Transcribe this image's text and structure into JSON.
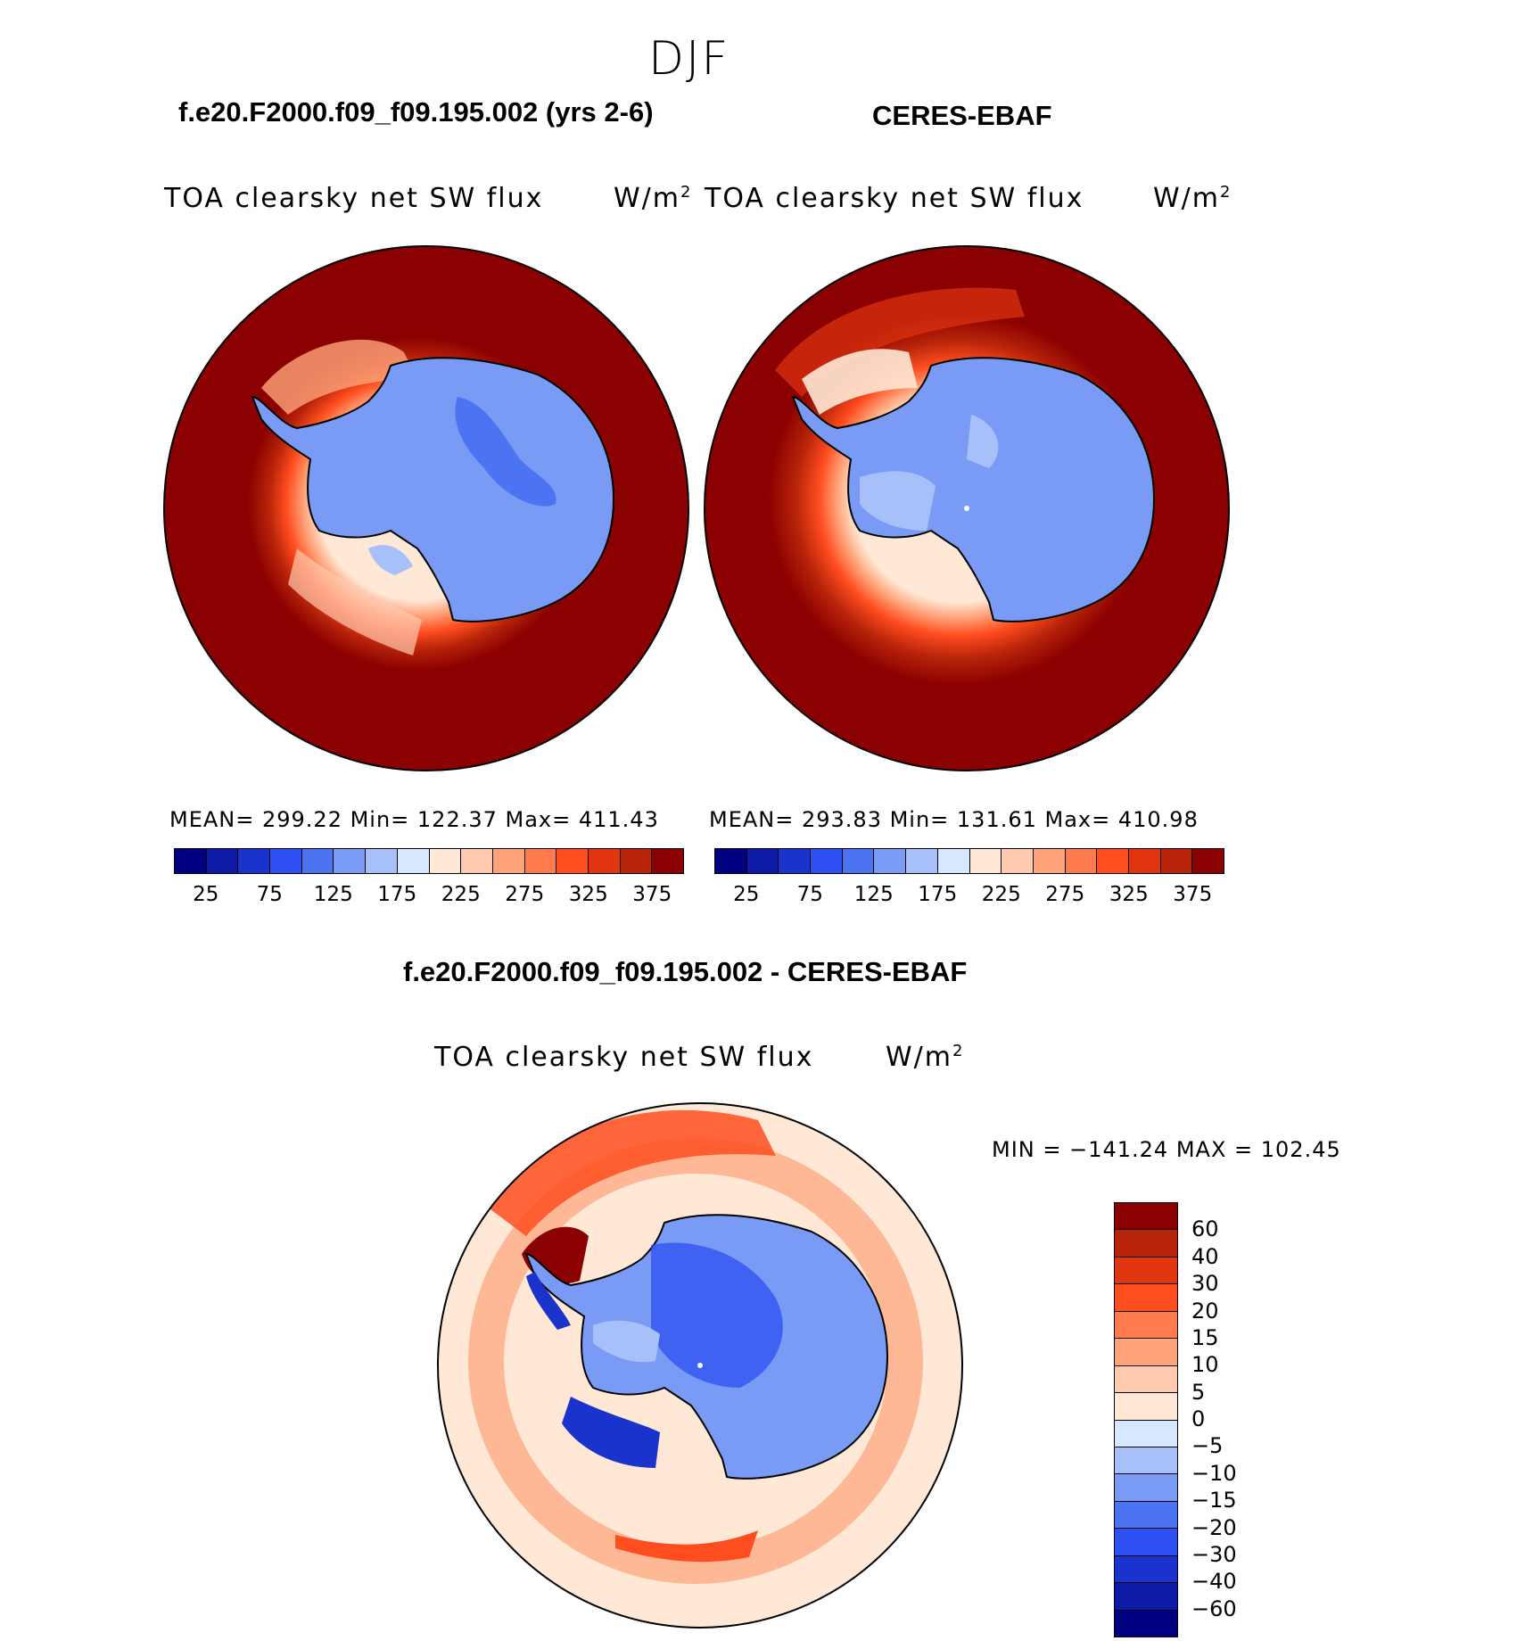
{
  "season": "DJF",
  "panels": [
    {
      "case": "f.e20.F2000.f09_f09.195.002 (yrs 2-6)",
      "variable": "TOA clearsky net SW flux",
      "units": "W/m",
      "units_sup": "2",
      "stats": "MEAN= 299.22   Min= 122.37   Max= 411.43"
    },
    {
      "case": "CERES-EBAF",
      "variable": "TOA clearsky net SW flux",
      "units": "W/m",
      "units_sup": "2",
      "stats": "MEAN= 293.83   Min= 131.61   Max= 410.98"
    }
  ],
  "diff": {
    "title": "f.e20.F2000.f09_f09.195.002 - CERES-EBAF",
    "variable": "TOA clearsky net SW flux",
    "units": "W/m",
    "units_sup": "2",
    "minmax": "MIN = −141.24 MAX = 102.45"
  },
  "colorbar_main": {
    "colors": [
      "#000080",
      "#0d1aa6",
      "#1a33cc",
      "#2e4ff2",
      "#4b73f2",
      "#7a9bf5",
      "#a8c0fa",
      "#d6e8ff",
      "#ffe8d6",
      "#ffcab0",
      "#ffa47a",
      "#ff7a4d",
      "#ff4d1f",
      "#e0350f",
      "#b8240a",
      "#8b0000"
    ],
    "labels": [
      "25",
      "75",
      "125",
      "175",
      "225",
      "275",
      "325",
      "375"
    ]
  },
  "colorbar_diff": {
    "colors": [
      "#000080",
      "#0d1aa6",
      "#1a33cc",
      "#2e4ff2",
      "#4b73f2",
      "#7a9bf5",
      "#a8c0fa",
      "#d6e8ff",
      "#ffe8d6",
      "#ffcab0",
      "#ffa47a",
      "#ff7a4d",
      "#ff4d1f",
      "#e0350f",
      "#b8240a",
      "#8b0000"
    ],
    "labels": [
      "−60",
      "−40",
      "−30",
      "−20",
      "−15",
      "−10",
      "−5",
      "0",
      "5",
      "10",
      "15",
      "20",
      "30",
      "40",
      "60"
    ]
  }
}
